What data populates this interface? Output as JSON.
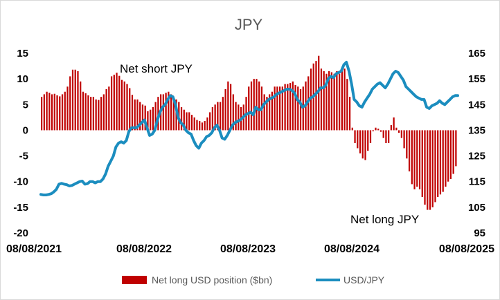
{
  "chart_data": {
    "type": "bar+line",
    "title": "JPY",
    "x_ticks": [
      "08/08/2021",
      "08/08/2022",
      "08/08/2023",
      "08/08/2024",
      "08/08/2025"
    ],
    "y_left": {
      "min": -20,
      "max": 15,
      "ticks": [
        15,
        10,
        5,
        0,
        -5,
        -10,
        -15,
        -20
      ]
    },
    "y_right": {
      "min": 95,
      "max": 165,
      "ticks": [
        165,
        155,
        145,
        135,
        125,
        115,
        105,
        95
      ]
    },
    "annotations": [
      "Net short JPY",
      "Net long JPY"
    ],
    "legend_position": "bottom",
    "series": [
      {
        "name": "Net long USD position ($bn)",
        "kind": "bar",
        "axis": "left",
        "color": "#c00000",
        "values": [
          6.5,
          7.0,
          7.5,
          7.3,
          7.0,
          7.1,
          6.8,
          6.6,
          7.0,
          7.5,
          8.5,
          10.5,
          11.8,
          11.8,
          11.5,
          9.5,
          7.5,
          7.2,
          6.8,
          6.5,
          6.5,
          6.0,
          5.9,
          6.5,
          7.0,
          8.0,
          8.5,
          10.5,
          10.8,
          11.2,
          10.6,
          9.8,
          9.5,
          9.0,
          8.2,
          6.9,
          6.0,
          6.0,
          5.5,
          5.0,
          4.8,
          3.7,
          4.0,
          4.5,
          5.5,
          6.5,
          7.0,
          7.0,
          7.3,
          7.5,
          7.0,
          5.8,
          6.0,
          5.5,
          4.5,
          4.0,
          3.5,
          3.5,
          3.0,
          2.5,
          2.0,
          1.8,
          1.5,
          1.8,
          2.5,
          3.5,
          4.5,
          5.0,
          5.5,
          5.5,
          6.5,
          8.0,
          9.5,
          9.0,
          7.0,
          5.5,
          5.0,
          4.5,
          5.0,
          6.5,
          8.5,
          9.5,
          10.0,
          10.0,
          9.5,
          8.5,
          7.0,
          6.5,
          7.0,
          7.5,
          8.5,
          8.5,
          8.5,
          8.5,
          9.0,
          9.0,
          9.2,
          9.5,
          8.8,
          8.5,
          8.0,
          8.5,
          9.5,
          10.5,
          12.0,
          13.0,
          13.5,
          14.5,
          12.0,
          11.5,
          11.0,
          11.5,
          11.3,
          11.0,
          11.5,
          11.0,
          11.5,
          12.0,
          10.0,
          6.5,
          0.5,
          -2.5,
          -3.5,
          -4.5,
          -5.5,
          -5.8,
          -4.0,
          -2.5,
          -0.2,
          0.5,
          0.3,
          -0.3,
          -1.5,
          -2.5,
          -2.5,
          1.0,
          2.5,
          0.5,
          -0.5,
          -1.5,
          -3.5,
          -5.5,
          -8.0,
          -10.5,
          -11.5,
          -11.0,
          -11.5,
          -13.0,
          -14.5,
          -15.5,
          -15.5,
          -15.0,
          -14.0,
          -13.0,
          -12.5,
          -12.0,
          -11.0,
          -10.0,
          -9.5,
          -8.5,
          -7.0
        ]
      },
      {
        "name": "USD/JPY",
        "kind": "line",
        "axis": "right",
        "color": "#1b8dbf",
        "values": [
          110.0,
          109.8,
          109.8,
          110.0,
          110.3,
          111.0,
          112.0,
          114.0,
          114.3,
          114.0,
          113.8,
          113.3,
          113.5,
          114.0,
          114.5,
          115.0,
          115.2,
          114.0,
          114.2,
          115.0,
          115.0,
          114.5,
          115.0,
          115.0,
          116.0,
          118.0,
          121.0,
          123.0,
          125.0,
          128.5,
          130.0,
          130.5,
          130.0,
          131.0,
          134.5,
          136.0,
          136.0,
          136.0,
          137.0,
          138.0,
          139.0,
          136.0,
          133.0,
          133.5,
          135.0,
          139.0,
          142.0,
          144.0,
          145.0,
          147.0,
          148.5,
          148.0,
          145.0,
          140.0,
          138.0,
          137.0,
          135.0,
          134.0,
          133.5,
          131.0,
          129.0,
          128.0,
          130.0,
          131.0,
          132.5,
          133.0,
          134.0,
          136.0,
          137.0,
          135.0,
          132.0,
          131.5,
          133.0,
          135.0,
          137.0,
          138.0,
          138.5,
          139.0,
          140.0,
          141.0,
          141.5,
          142.0,
          141.0,
          144.0,
          143.0,
          143.0,
          145.0,
          146.0,
          147.0,
          147.5,
          148.0,
          149.0,
          149.5,
          150.0,
          150.5,
          151.0,
          151.0,
          150.5,
          149.5,
          147.0,
          146.0,
          144.0,
          144.5,
          146.0,
          147.5,
          148.0,
          149.0,
          150.0,
          151.5,
          151.5,
          152.5,
          155.0,
          156.0,
          155.5,
          157.0,
          157.5,
          158.0,
          160.5,
          161.5,
          158.0,
          153.0,
          147.0,
          146.0,
          144.5,
          144.0,
          146.0,
          147.5,
          149.0,
          151.0,
          152.0,
          153.0,
          153.5,
          152.5,
          151.5,
          153.0,
          155.0,
          157.0,
          158.0,
          157.5,
          156.0,
          154.5,
          152.0,
          151.0,
          150.0,
          149.0,
          148.0,
          147.5,
          147.0,
          147.0,
          144.0,
          143.5,
          144.5,
          145.0,
          145.5,
          146.5,
          145.5,
          145.0,
          146.0,
          147.0,
          148.0,
          148.5,
          148.5
        ]
      }
    ]
  }
}
